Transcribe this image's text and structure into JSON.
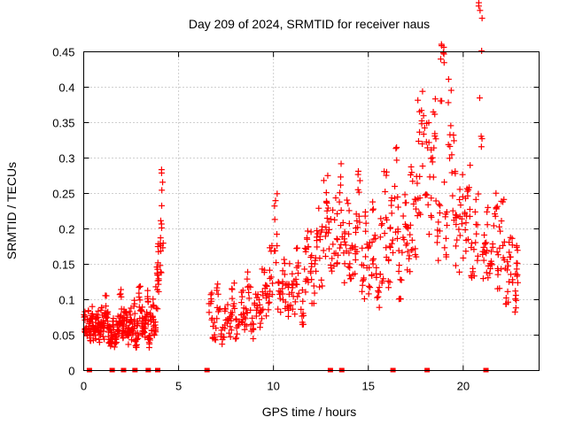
{
  "chart_data": {
    "type": "scatter",
    "title": "Day 209 of 2024, SRMTID for receiver naus",
    "xlabel": "GPS time / hours",
    "ylabel": "SRMTID / TECUs",
    "xlim": [
      0,
      24
    ],
    "ylim": [
      0,
      0.45
    ],
    "xticks": [
      0,
      5,
      10,
      15,
      20
    ],
    "yticks": [
      0,
      0.05,
      0.1,
      0.15,
      0.2,
      0.25,
      0.3,
      0.35,
      0.4,
      0.45
    ],
    "xtick_labels": [
      "0",
      "5",
      "10",
      "15",
      "20"
    ],
    "ytick_labels": [
      "0",
      "0.05",
      "0.1",
      "0.15",
      "0.2",
      "0.25",
      "0.3",
      "0.35",
      "0.4",
      "0.45"
    ],
    "grid": true,
    "marker": "+",
    "color": "#ff0000",
    "series": [
      {
        "name": "SRMTID",
        "x": [
          0.0,
          0.1,
          0.2,
          0.3,
          0.4,
          0.5,
          0.6,
          0.7,
          0.8,
          0.9,
          1.0,
          1.1,
          1.2,
          1.3,
          1.4,
          1.5,
          1.6,
          1.7,
          1.8,
          1.9,
          2.0,
          2.1,
          2.2,
          2.3,
          2.4,
          2.5,
          2.6,
          2.7,
          2.8,
          2.9,
          3.0,
          3.1,
          3.2,
          3.3,
          3.4,
          3.5,
          3.6,
          3.7,
          3.8,
          3.9,
          4.0,
          4.1,
          6.6,
          6.8,
          7.0,
          7.2,
          7.4,
          7.6,
          7.8,
          8.0,
          8.2,
          8.4,
          8.6,
          8.8,
          9.0,
          9.2,
          9.4,
          9.6,
          9.8,
          10.0,
          10.2,
          10.4,
          10.6,
          10.8,
          11.0,
          11.2,
          11.4,
          11.6,
          11.8,
          12.0,
          12.2,
          12.4,
          12.6,
          12.8,
          13.0,
          13.2,
          13.4,
          13.6,
          13.8,
          14.0,
          14.2,
          14.4,
          14.6,
          14.8,
          15.0,
          15.2,
          15.4,
          15.6,
          15.8,
          16.0,
          16.2,
          16.4,
          16.6,
          16.8,
          17.0,
          17.2,
          17.4,
          17.6,
          17.8,
          18.0,
          18.2,
          18.4,
          18.6,
          18.8,
          19.0,
          19.2,
          19.4,
          19.6,
          19.8,
          20.0,
          20.2,
          20.4,
          20.6,
          20.8,
          21.0,
          21.2,
          21.4,
          21.6,
          21.8,
          22.0,
          22.2,
          22.4,
          22.6,
          22.8
        ],
        "y": [
          0.065,
          0.06,
          0.07,
          0.058,
          0.072,
          0.05,
          0.062,
          0.068,
          0.055,
          0.07,
          0.06,
          0.085,
          0.065,
          0.05,
          0.045,
          0.06,
          0.04,
          0.055,
          0.07,
          0.09,
          0.06,
          0.075,
          0.065,
          0.05,
          0.07,
          0.06,
          0.08,
          0.045,
          0.055,
          0.1,
          0.07,
          0.065,
          0.06,
          0.09,
          0.04,
          0.075,
          0.08,
          0.065,
          0.12,
          0.15,
          0.17,
          0.23,
          0.09,
          0.06,
          0.1,
          0.05,
          0.08,
          0.065,
          0.1,
          0.06,
          0.09,
          0.07,
          0.11,
          0.06,
          0.09,
          0.08,
          0.12,
          0.1,
          0.14,
          0.2,
          0.11,
          0.13,
          0.1,
          0.12,
          0.11,
          0.14,
          0.09,
          0.15,
          0.17,
          0.13,
          0.19,
          0.16,
          0.21,
          0.22,
          0.18,
          0.2,
          0.24,
          0.17,
          0.2,
          0.15,
          0.18,
          0.23,
          0.14,
          0.19,
          0.15,
          0.2,
          0.12,
          0.17,
          0.22,
          0.16,
          0.21,
          0.25,
          0.14,
          0.2,
          0.18,
          0.23,
          0.22,
          0.3,
          0.35,
          0.28,
          0.25,
          0.32,
          0.2,
          0.38,
          0.22,
          0.35,
          0.26,
          0.18,
          0.22,
          0.2,
          0.24,
          0.17,
          0.21,
          0.43,
          0.15,
          0.18,
          0.14,
          0.2,
          0.16,
          0.19,
          0.12,
          0.15,
          0.11,
          0.14
        ],
        "baseline_x": [
          0.3,
          1.5,
          2.1,
          2.7,
          3.4,
          3.9,
          6.5,
          13.0,
          13.6,
          16.3,
          18.1,
          21.2
        ]
      }
    ]
  }
}
